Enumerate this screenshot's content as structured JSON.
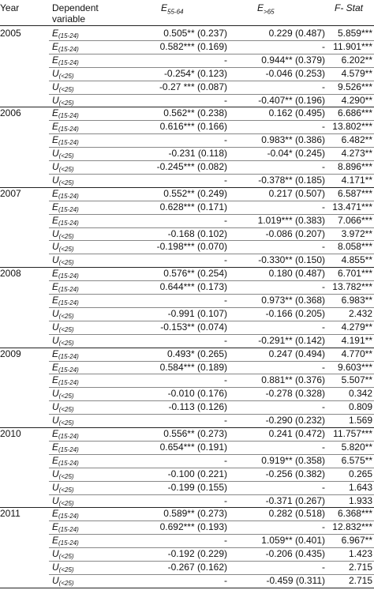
{
  "header": {
    "year": "Year",
    "dependent_line1": "Dependent",
    "dependent_line2": "variable",
    "col1_main": "E",
    "col1_sub": "55-64",
    "col2_main": "E",
    "col2_sub": ">65",
    "col3": "F- Stat"
  },
  "years": [
    {
      "year": "2005",
      "rows": [
        {
          "var": "E",
          "sub": "(15-24)",
          "c1": "0.505** (0.237)",
          "c2": "0.229 (0.487)",
          "c3": "5.859***"
        },
        {
          "var": "E",
          "sub": "(15-24)",
          "c1": "0.582*** (0.169)",
          "c2": "-",
          "c3": "11.901***"
        },
        {
          "var": "E",
          "sub": "(15-24)",
          "c1": "-",
          "c2": "0.944** (0.379)",
          "c3": "6.202**"
        },
        {
          "var": "U",
          "sub": "(<25)",
          "c1": "-0.254* (0.123)",
          "c2": "-0.046 (0.253)",
          "c3": "4.579**"
        },
        {
          "var": "U",
          "sub": "(<25)",
          "c1": "-0.27 *** (0.087)",
          "c2": "-",
          "c3": "9.526***"
        },
        {
          "var": "U",
          "sub": "(<25)",
          "c1": "-",
          "c2": "-0.407** (0.196)",
          "c3": "4.290**"
        }
      ]
    },
    {
      "year": "2006",
      "rows": [
        {
          "var": "E",
          "sub": "(15-24)",
          "c1": "0.562** (0.238)",
          "c2": "0.162 (0.495)",
          "c3": "6.686***"
        },
        {
          "var": "E",
          "sub": "(15-24)",
          "c1": "0.616*** (0.166)",
          "c2": "-",
          "c3": "13.802***"
        },
        {
          "var": "E",
          "sub": "(15-24)",
          "c1": "-",
          "c2": "0.983** (0.386)",
          "c3": "6.482**"
        },
        {
          "var": "U",
          "sub": "(<25)",
          "c1": "-0.231 (0.118)",
          "c2": "-0.04* (0.245)",
          "c3": "4.273**"
        },
        {
          "var": "U",
          "sub": "(<25)",
          "c1": "-0.245*** (0.082)",
          "c2": "-",
          "c3": "8.896***"
        },
        {
          "var": "U",
          "sub": "(<25)",
          "c1": "-",
          "c2": "-0.378** (0.185)",
          "c3": "4.171**"
        }
      ]
    },
    {
      "year": "2007",
      "rows": [
        {
          "var": "E",
          "sub": "(15-24)",
          "c1": "0.552** (0.249)",
          "c2": "0.217 (0.507)",
          "c3": "6.587***"
        },
        {
          "var": "E",
          "sub": "(15-24)",
          "c1": "0.628*** (0.171)",
          "c2": "-",
          "c3": "13.471***"
        },
        {
          "var": "E",
          "sub": "(15-24)",
          "c1": "-",
          "c2": "1.019*** (0.383)",
          "c3": "7.066***"
        },
        {
          "var": "U",
          "sub": "(<25)",
          "c1": "-0.168 (0.102)",
          "c2": "-0.086 (0.207)",
          "c3": "3.972**"
        },
        {
          "var": "U",
          "sub": "(<25)",
          "c1": "-0.198*** (0.070)",
          "c2": "-",
          "c3": "8.058***"
        },
        {
          "var": "U",
          "sub": "(<25)",
          "c1": "-",
          "c2": "-0.330** (0.150)",
          "c3": "4.855**"
        }
      ]
    },
    {
      "year": "2008",
      "rows": [
        {
          "var": "E",
          "sub": "(15-24)",
          "c1": "0.576** (0.254)",
          "c2": "0.180 (0.487)",
          "c3": "6.701***"
        },
        {
          "var": "E",
          "sub": "(15-24)",
          "c1": "0.644*** (0.173)",
          "c2": "-",
          "c3": "13.782***"
        },
        {
          "var": "E",
          "sub": "(15-24)",
          "c1": "-",
          "c2": "0.973** (0.368)",
          "c3": "6.983**"
        },
        {
          "var": "U",
          "sub": "(<25)",
          "c1": "-0.991 (0.107)",
          "c2": "-0.166 (0.205)",
          "c3": "2.432"
        },
        {
          "var": "U",
          "sub": "(<25)",
          "c1": "-0.153** (0.074)",
          "c2": "-",
          "c3": "4.279**"
        },
        {
          "var": "U",
          "sub": "(<25)",
          "c1": "-",
          "c2": "-0.291** (0.142)",
          "c3": "4.191**"
        }
      ]
    },
    {
      "year": "2009",
      "rows": [
        {
          "var": "E",
          "sub": "(15-24)",
          "c1": "0.493* (0.265)",
          "c2": "0.247 (0.494)",
          "c3": "4.770**"
        },
        {
          "var": "E",
          "sub": "(15-24)",
          "c1": "0.584*** (0.189)",
          "c2": "-",
          "c3": "9.603***"
        },
        {
          "var": "E",
          "sub": "(15-24)",
          "c1": "-",
          "c2": "0.881** (0.376)",
          "c3": "5.507**"
        },
        {
          "var": "U",
          "sub": "(<25)",
          "c1": "-0.010 (0.176)",
          "c2": "-0.278 (0.328)",
          "c3": "0.342"
        },
        {
          "var": "U",
          "sub": "(<25)",
          "c1": "-0.113 (0.126)",
          "c2": "-",
          "c3": "0.809"
        },
        {
          "var": "U",
          "sub": "(<25)",
          "c1": "-",
          "c2": "-0.290 (0.232)",
          "c3": "1.569"
        }
      ]
    },
    {
      "year": "2010",
      "rows": [
        {
          "var": "E",
          "sub": "(15-24)",
          "c1": "0.556** (0.273)",
          "c2": "0.241 (0.472)",
          "c3": "11.757***"
        },
        {
          "var": "E",
          "sub": "(15-24)",
          "c1": "0.654*** (0.191)",
          "c2": "-",
          "c3": "5.820**"
        },
        {
          "var": "E",
          "sub": "(15-24)",
          "c1": "-",
          "c2": "0.919** (0.358)",
          "c3": "6.575**"
        },
        {
          "var": "U",
          "sub": "(<25)",
          "c1": "-0.100 (0.221)",
          "c2": "-0.256 (0.382)",
          "c3": "0.265"
        },
        {
          "var": "U",
          "sub": "(<25)",
          "c1": "-0.199 (0.155)",
          "c2": "-",
          "c3": "1.643"
        },
        {
          "var": "U",
          "sub": "(<25)",
          "c1": "-",
          "c2": "-0.371 (0.267)",
          "c3": "1.933"
        }
      ]
    },
    {
      "year": "2011",
      "rows": [
        {
          "var": "E",
          "sub": "(15-24)",
          "c1": "0.589** (0.273)",
          "c2": "0.282 (0.518)",
          "c3": "6.368***"
        },
        {
          "var": "E",
          "sub": "(15-24)",
          "c1": "0.692*** (0.193)",
          "c2": "-",
          "c3": "12.832***"
        },
        {
          "var": "E",
          "sub": "(15-24)",
          "c1": "-",
          "c2": "1.059** (0.401)",
          "c3": "6.967**"
        },
        {
          "var": "U",
          "sub": "(<25)",
          "c1": "-0.192 (0.229)",
          "c2": "-0.206 (0.435)",
          "c3": "1.423"
        },
        {
          "var": "U",
          "sub": "(<25)",
          "c1": "-0.267 (0.162)",
          "c2": "-",
          "c3": "2.715"
        },
        {
          "var": "U",
          "sub": "(<25)",
          "c1": "-",
          "c2": "-0.459 (0.311)",
          "c3": "2.715"
        }
      ]
    }
  ]
}
